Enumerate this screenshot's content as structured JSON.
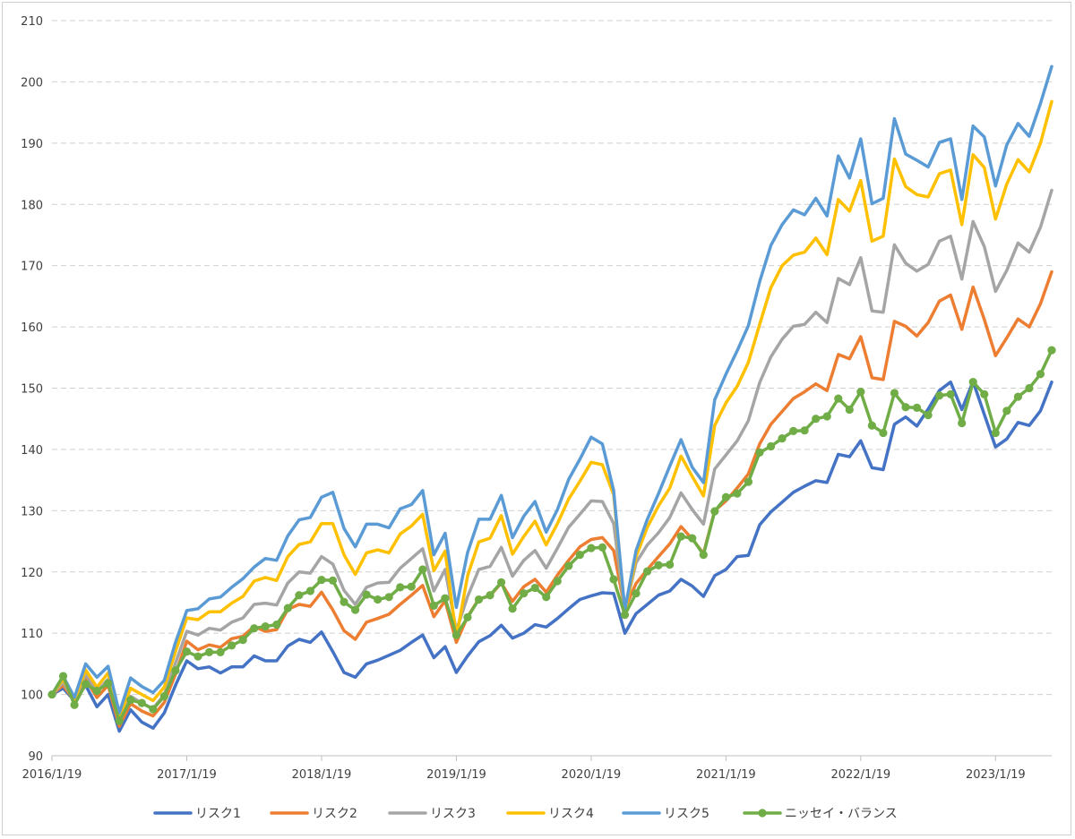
{
  "chart_data": {
    "type": "line",
    "title": "",
    "xlabel": "",
    "ylabel": "",
    "ylim": [
      90,
      210
    ],
    "yticks": [
      90,
      100,
      110,
      120,
      130,
      140,
      150,
      160,
      170,
      180,
      190,
      200,
      210
    ],
    "grid": true,
    "legend_position": "bottom",
    "x_tick_labels": [
      "2016/1/19",
      "2017/1/19",
      "2018/1/19",
      "2019/1/19",
      "2020/1/19",
      "2021/1/19",
      "2022/1/19",
      "2023/1/19"
    ],
    "x_tick_index": [
      0,
      12,
      24,
      36,
      48,
      60,
      72,
      84
    ],
    "series": [
      {
        "name": "リスク1",
        "color": "#4472c4",
        "marker": false,
        "values": [
          100.0,
          101.0,
          99.0,
          101.5,
          98.0,
          100.0,
          94.0,
          97.5,
          95.5,
          94.5,
          97.0,
          101.5,
          105.5,
          104.2,
          104.5,
          103.5,
          104.5,
          104.5,
          106.3,
          105.5,
          105.5,
          107.9,
          109.0,
          108.5,
          110.2,
          107.0,
          103.6,
          102.8,
          105.0,
          105.6,
          106.4,
          107.2,
          108.5,
          109.7,
          106.0,
          107.8,
          103.6,
          106.3,
          108.6,
          109.6,
          111.3,
          109.2,
          110.0,
          111.4,
          111.0,
          112.4,
          114.0,
          115.5,
          116.1,
          116.6,
          116.5,
          110.0,
          113.2,
          114.7,
          116.2,
          116.9,
          118.8,
          117.7,
          116.0,
          119.4,
          120.4,
          122.5,
          122.7,
          127.7,
          129.8,
          131.4,
          133.0,
          134.0,
          134.9,
          134.6,
          139.2,
          138.8,
          141.4,
          137.0,
          136.7,
          144.1,
          145.3,
          143.8,
          146.6,
          149.6,
          151.0,
          146.5,
          151.1,
          145.7,
          140.4,
          141.7,
          144.4,
          143.9,
          146.3,
          151.0
        ]
      },
      {
        "name": "リスク2",
        "color": "#ed7d31",
        "marker": false,
        "values": [
          100.0,
          101.5,
          99.0,
          102.5,
          99.5,
          101.5,
          94.8,
          98.5,
          97.3,
          96.5,
          98.7,
          103.3,
          108.7,
          107.3,
          108.1,
          107.7,
          109.1,
          109.5,
          111.1,
          110.3,
          110.6,
          113.9,
          114.7,
          114.4,
          116.7,
          113.8,
          110.4,
          109.0,
          111.8,
          112.4,
          113.1,
          114.7,
          116.2,
          117.8,
          112.7,
          115.3,
          108.5,
          112.7,
          115.6,
          116.1,
          118.2,
          115.2,
          117.6,
          118.8,
          116.7,
          119.5,
          121.9,
          124.1,
          125.3,
          125.6,
          123.5,
          114.0,
          118.1,
          120.4,
          122.5,
          124.6,
          127.4,
          125.4,
          123.0,
          130.0,
          131.6,
          133.7,
          136.0,
          140.9,
          144.1,
          146.2,
          148.3,
          149.4,
          150.7,
          149.6,
          155.5,
          154.8,
          158.4,
          151.7,
          151.4,
          160.9,
          160.1,
          158.5,
          160.7,
          164.2,
          165.2,
          159.6,
          166.5,
          161.2,
          155.3,
          158.2,
          161.3,
          160.0,
          163.8,
          169.0
        ]
      },
      {
        "name": "リスク3",
        "color": "#a5a5a5",
        "marker": false,
        "values": [
          100.0,
          102.0,
          99.0,
          103.3,
          100.5,
          102.5,
          95.5,
          99.7,
          98.6,
          97.7,
          100.0,
          105.1,
          110.3,
          109.7,
          110.8,
          110.5,
          111.8,
          112.5,
          114.7,
          114.9,
          114.6,
          118.2,
          120.0,
          119.8,
          122.5,
          121.3,
          117.0,
          114.7,
          117.5,
          118.2,
          118.3,
          120.6,
          122.2,
          123.8,
          116.9,
          120.4,
          110.4,
          116.0,
          120.4,
          120.9,
          124.0,
          119.3,
          121.9,
          123.5,
          120.6,
          123.9,
          127.3,
          129.4,
          131.6,
          131.5,
          127.9,
          113.6,
          121.5,
          124.4,
          126.4,
          128.9,
          132.9,
          130.2,
          127.8,
          136.8,
          139.1,
          141.4,
          144.7,
          150.9,
          155.1,
          158.0,
          160.1,
          160.4,
          162.4,
          160.7,
          167.9,
          166.9,
          171.3,
          162.6,
          162.4,
          173.4,
          170.4,
          169.1,
          170.2,
          174.0,
          174.8,
          167.8,
          177.2,
          173.1,
          165.8,
          169.2,
          173.7,
          172.2,
          176.3,
          182.3
        ]
      },
      {
        "name": "リスク4",
        "color": "#ffc000",
        "marker": false,
        "values": [
          100.0,
          102.5,
          99.0,
          104.0,
          101.2,
          103.5,
          96.3,
          101.0,
          100.0,
          99.0,
          101.2,
          107.0,
          112.5,
          112.2,
          113.5,
          113.5,
          114.9,
          116.0,
          118.5,
          119.1,
          118.6,
          122.5,
          124.5,
          124.9,
          127.9,
          127.9,
          122.8,
          119.6,
          123.1,
          123.6,
          123.1,
          126.2,
          127.5,
          129.4,
          120.2,
          123.4,
          109.3,
          119.4,
          124.9,
          125.5,
          129.2,
          122.9,
          125.8,
          128.3,
          124.4,
          127.9,
          131.9,
          134.8,
          137.9,
          137.5,
          132.6,
          113.3,
          122.5,
          127.3,
          130.8,
          133.7,
          138.9,
          135.6,
          132.4,
          143.9,
          147.6,
          150.3,
          154.2,
          160.4,
          166.4,
          170.0,
          171.7,
          172.2,
          174.5,
          171.8,
          180.8,
          178.9,
          183.9,
          174.0,
          174.8,
          187.4,
          182.9,
          181.6,
          181.2,
          185.0,
          185.6,
          176.7,
          188.1,
          186.0,
          177.6,
          183.3,
          187.3,
          185.3,
          190.0,
          196.8
        ]
      },
      {
        "name": "リスク5",
        "color": "#5b9bd5",
        "marker": false,
        "values": [
          100.0,
          103.0,
          99.5,
          105.0,
          102.8,
          104.6,
          97.0,
          102.7,
          101.3,
          100.3,
          102.3,
          108.5,
          113.7,
          114.0,
          115.6,
          115.9,
          117.5,
          118.9,
          120.8,
          122.2,
          121.9,
          125.9,
          128.5,
          128.9,
          132.2,
          133.0,
          127.1,
          124.1,
          127.8,
          127.8,
          127.2,
          130.3,
          131.0,
          133.3,
          122.8,
          126.3,
          114.2,
          123.2,
          128.6,
          128.6,
          132.5,
          125.6,
          129.1,
          131.5,
          126.5,
          130.2,
          135.1,
          138.4,
          142.0,
          140.9,
          133.3,
          113.8,
          123.5,
          128.6,
          132.8,
          137.3,
          141.6,
          137.1,
          134.6,
          148.1,
          152.3,
          156.1,
          160.2,
          167.4,
          173.3,
          176.7,
          179.1,
          178.3,
          181.0,
          178.1,
          187.9,
          184.3,
          190.7,
          180.1,
          181.0,
          194.0,
          188.2,
          187.2,
          186.1,
          190.1,
          190.7,
          180.8,
          192.8,
          191.0,
          183.0,
          189.7,
          193.2,
          191.1,
          196.5,
          202.5
        ]
      },
      {
        "name": "ニッセイ・バランス",
        "color": "#70ad47",
        "marker": true,
        "values": [
          100.0,
          103.0,
          98.3,
          101.7,
          100.6,
          101.8,
          95.7,
          99.1,
          98.6,
          97.6,
          99.7,
          103.9,
          107.0,
          106.2,
          106.9,
          106.9,
          108.0,
          108.9,
          110.8,
          111.1,
          111.4,
          114.1,
          116.2,
          116.9,
          118.7,
          118.6,
          115.1,
          113.8,
          116.3,
          115.5,
          115.9,
          117.5,
          117.6,
          120.4,
          114.5,
          115.7,
          109.7,
          112.6,
          115.5,
          116.2,
          118.3,
          114.0,
          116.5,
          117.4,
          115.9,
          118.5,
          121.0,
          122.8,
          123.9,
          124.0,
          118.8,
          113.0,
          116.5,
          120.1,
          121.1,
          121.2,
          125.8,
          125.5,
          122.8,
          129.9,
          132.2,
          132.8,
          134.7,
          139.5,
          140.5,
          141.8,
          143.0,
          143.1,
          145.0,
          145.4,
          148.3,
          146.5,
          149.4,
          143.9,
          142.7,
          149.2,
          146.9,
          146.8,
          145.6,
          148.8,
          149.0,
          144.3,
          151.0,
          149.0,
          142.7,
          146.3,
          148.6,
          150.0,
          152.3,
          156.2
        ]
      }
    ]
  }
}
